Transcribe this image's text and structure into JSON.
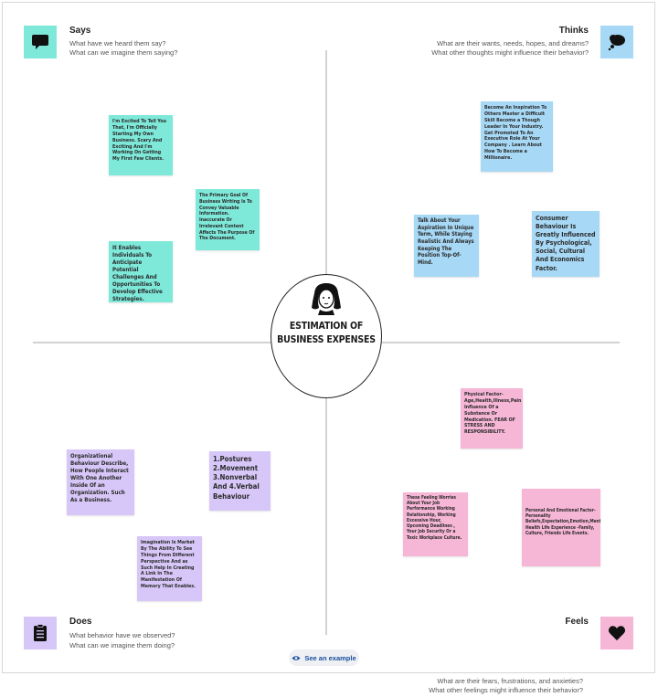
{
  "quadrants": {
    "says": {
      "title": "Says",
      "line1": "What have we heard them say?",
      "line2": "What can we imagine them saying?",
      "icon": "speech-bubble-icon",
      "color": "#7ee8d9"
    },
    "thinks": {
      "title": "Thinks",
      "line1": "What are their wants, needs, hopes, and dreams?",
      "line2": "What other thoughts might influence their behavior?",
      "icon": "thought-cloud-icon",
      "color": "#a7d8f5"
    },
    "does": {
      "title": "Does",
      "line1": "What behavior have we observed?",
      "line2": "What can we imagine them doing?",
      "icon": "clipboard-icon",
      "color": "#d7c7f8"
    },
    "feels": {
      "title": "Feels",
      "line1": "What are their fears, frustrations, and anxieties?",
      "line2": "What other feelings might influence their behavior?",
      "icon": "heart-icon",
      "color": "#f6b6d6"
    }
  },
  "center": {
    "line1": "ESTIMATION OF",
    "line2": "BUSINESS EXPENSES",
    "icon": "person-face-icon"
  },
  "notes": {
    "says1": "I'm Excited To Tell You That, I'm Officially Starting My Own Business. Scary And Exciting And I'm Working On Getting My First Few Clients.",
    "says2": "The Primary Goal Of Business Writing Is To Convey Valuable Information. Inaccurate Or Irrelevant Content Affects The Purpose Of The Document.",
    "says3": "It Enables Individuals To Anticipate Potential Challenges And Opportunities To Develop Effective Strategies.",
    "thinks1": "Become An Inspiration To Others Master a Difficult Skill Become a Though Leader In Your Industry. Get Promoted To An Executive Role At Your Company . Learn About How To Become a Millionaire.",
    "thinks2": "Talk About Your Aspiration In Unique Term, While Staying Realistic And Always Keeping The Position Top-Of-Mind.",
    "thinks3": "Consumer Behaviour Is Greatly Influenced By Psychological, Social, Cultural And Economics Factor.",
    "does1": "Organizational Behaviour Describe, How People Interact With One Another Inside Of an Organization. Such As a Business.",
    "does2": "1.Postures 2.Movement 3.Nonverbal And 4.Verbal Behaviour",
    "does3": "Imagination Is Market By The Ability To See Things From Different Perspective And as Such Help In Creating A Link In The Manifestation Of Memory That Enables.",
    "feels1": "Physical Factor- Age,Health,Illness,Pain Influence Of a Substance Or Medication. FEAR OF STRESS AND RESPONSIBILITY.",
    "feels2": "These Feeling Worries About Your Job Performance Working Relationship, Working Excessive Hour, Upcoming Deadlines , Your Job Security Or a Toxic Workplace Culture.",
    "feels3": "Personal And Emotional Factor- Personality Beliefs,Expectation,Emotion,Mental Health Life Experience -Family, Culture, Friends Life Events."
  },
  "see_example": "See an example"
}
